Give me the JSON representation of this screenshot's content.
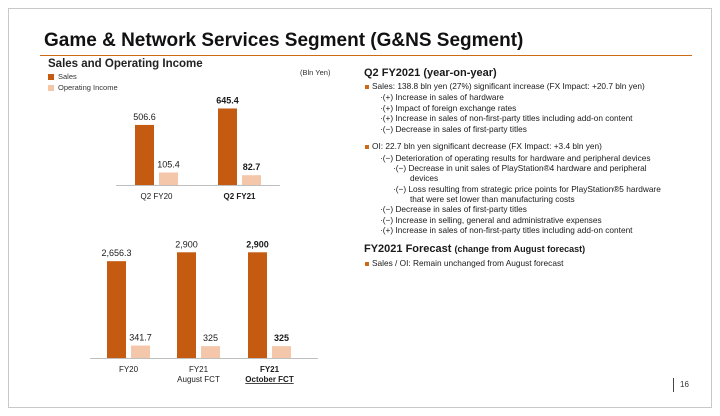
{
  "page": {
    "title": "Game & Network Services Segment (G&NS Segment)",
    "page_number": "16"
  },
  "left": {
    "section_title": "Sales and Operating Income",
    "unit": "(Bln Yen)",
    "legend": [
      {
        "label": "Sales",
        "color": "#c55a11"
      },
      {
        "label": "Operating Income",
        "color": "#f4c7aa"
      }
    ]
  },
  "chart_data": [
    {
      "type": "bar",
      "categories": [
        "Q2 FY20",
        "Q2 FY21"
      ],
      "series": [
        {
          "name": "Sales",
          "values": [
            506.6,
            645.4
          ],
          "labels": [
            "506.6",
            "645.4"
          ],
          "color": "#c55a11"
        },
        {
          "name": "Operating Income",
          "values": [
            105.4,
            82.7
          ],
          "labels": [
            "105.4",
            "82.7"
          ],
          "color": "#f4c7aa"
        }
      ],
      "bold_categories": [
        1
      ],
      "ylim": [
        0,
        700
      ]
    },
    {
      "type": "bar",
      "categories": [
        "FY20",
        "FY21\nAugust FCT",
        "FY21\nOctober FCT"
      ],
      "series": [
        {
          "name": "Sales",
          "values": [
            2656.3,
            2900,
            2900
          ],
          "labels": [
            "2,656.3",
            "2,900",
            "2,900"
          ],
          "color": "#c55a11"
        },
        {
          "name": "Operating Income",
          "values": [
            341.7,
            325,
            325
          ],
          "labels": [
            "341.7",
            "325",
            "325"
          ],
          "color": "#f4c7aa"
        }
      ],
      "bold_categories": [
        2
      ],
      "underline_categories": [
        2
      ],
      "ylim": [
        0,
        3100
      ]
    }
  ],
  "right": {
    "q2_heading": "Q2 FY2021 (year-on-year)",
    "sales_line": "Sales: 138.8 bln yen (27%) significant increase (FX Impact: +20.7 bln yen)",
    "sales_items": [
      "·(+) Increase in sales of hardware",
      "·(+) Impact of foreign exchange rates",
      "·(+) Increase in sales of non-first-party titles including add-on content",
      "·(−) Decrease in sales of first-party titles"
    ],
    "oi_line": "OI: 22.7 bln yen significant decrease (FX Impact: +3.4 bln yen)",
    "oi_item1": "·(−) Deterioration of operating results for hardware and peripheral devices",
    "oi_sub1a": "·(−) Decrease in unit sales of PlayStation®4 hardware and peripheral",
    "oi_sub1b": "devices",
    "oi_sub2a": "·(−) Loss resulting from strategic price points for PlayStation®5  hardware",
    "oi_sub2b": "that were set lower than manufacturing costs",
    "oi_items_after": [
      "·(−) Decrease in sales of first-party titles",
      "·(−) Increase in selling, general and administrative expenses",
      "·(+) Increase in sales of non-first-party titles including add-on content"
    ],
    "fc_heading_main": "FY2021 Forecast",
    "fc_heading_sub": "(change from August forecast)",
    "fc_line": "Sales / OI: Remain unchanged from August forecast"
  }
}
